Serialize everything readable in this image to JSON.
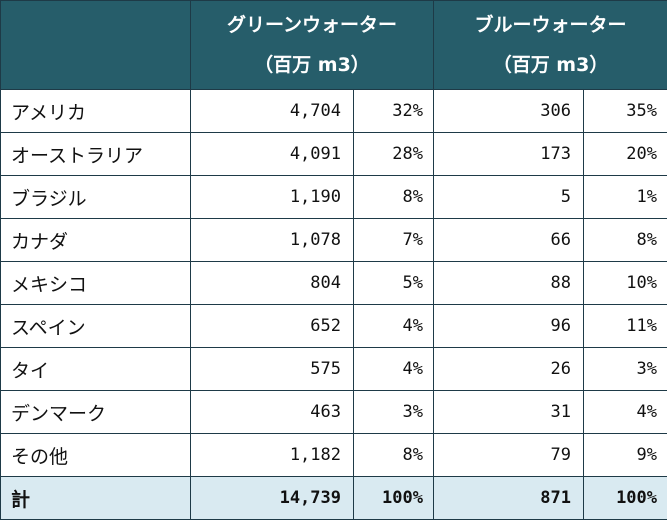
{
  "header": {
    "green_title": "グリーンウォーター",
    "green_unit": "（百万 m3）",
    "blue_title": "ブルーウォーター",
    "blue_unit": "（百万 m3）"
  },
  "rows": [
    {
      "country": "アメリカ",
      "green": "4,704",
      "green_pct": "32%",
      "blue": "306",
      "blue_pct": "35%"
    },
    {
      "country": "オーストラリア",
      "green": "4,091",
      "green_pct": "28%",
      "blue": "173",
      "blue_pct": "20%"
    },
    {
      "country": "ブラジル",
      "green": "1,190",
      "green_pct": "8%",
      "blue": "5",
      "blue_pct": "1%"
    },
    {
      "country": "カナダ",
      "green": "1,078",
      "green_pct": "7%",
      "blue": "66",
      "blue_pct": "8%"
    },
    {
      "country": "メキシコ",
      "green": "804",
      "green_pct": "5%",
      "blue": "88",
      "blue_pct": "10%"
    },
    {
      "country": "スペイン",
      "green": "652",
      "green_pct": "4%",
      "blue": "96",
      "blue_pct": "11%"
    },
    {
      "country": "タイ",
      "green": "575",
      "green_pct": "4%",
      "blue": "26",
      "blue_pct": "3%"
    },
    {
      "country": "デンマーク",
      "green": "463",
      "green_pct": "3%",
      "blue": "31",
      "blue_pct": "4%"
    },
    {
      "country": "その他",
      "green": "1,182",
      "green_pct": "8%",
      "blue": "79",
      "blue_pct": "9%"
    }
  ],
  "total": {
    "label": "計",
    "green": "14,739",
    "green_pct": "100%",
    "blue": "871",
    "blue_pct": "100%"
  },
  "colors": {
    "header_bg": "#265d6a",
    "total_bg": "#d9eaf1",
    "border": "#1e3a47"
  }
}
